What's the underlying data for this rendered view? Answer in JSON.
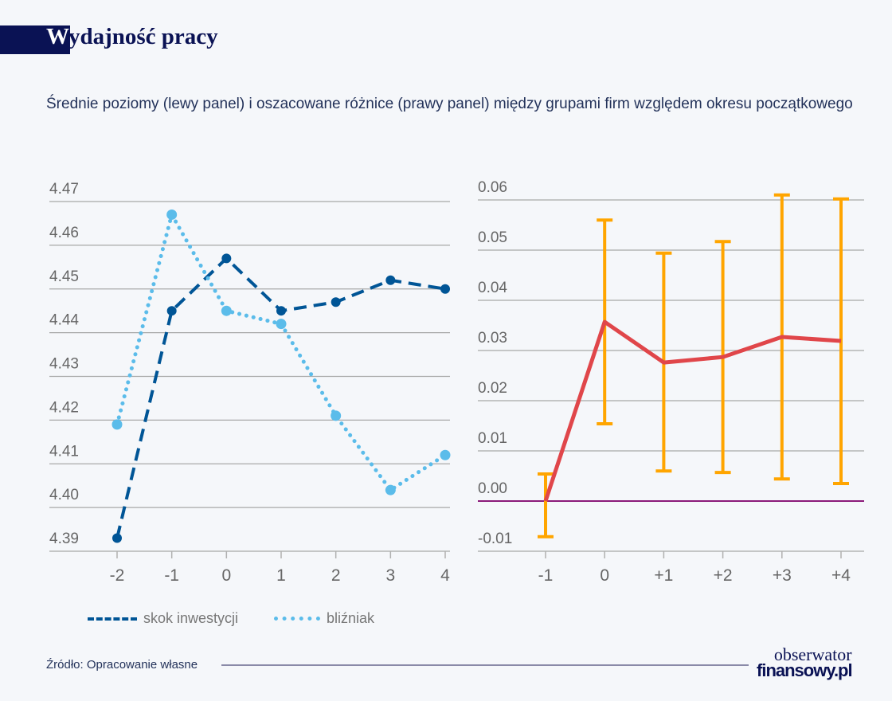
{
  "header": {
    "title_first_letter": "W",
    "title_rest": "ydajność pracy",
    "subtitle": "Średnie poziomy (lewy panel) i oszacowane różnice (prawy panel) między grupami firm względem okresu początkowego"
  },
  "chart_data": [
    {
      "type": "line",
      "categories": [
        "-2",
        "-1",
        "0",
        "1",
        "2",
        "3",
        "4"
      ],
      "ylim": [
        4.39,
        4.47
      ],
      "yticks": [
        "4.39",
        "4.40",
        "4.41",
        "4.42",
        "4.43",
        "4.44",
        "4.45",
        "4.46",
        "4.47"
      ],
      "grid": true,
      "legend_placement": "bottom",
      "series": [
        {
          "name": "skok inwestycji",
          "style": "dashed",
          "color": "#005596",
          "values": [
            4.393,
            4.445,
            4.457,
            4.445,
            4.447,
            4.452,
            4.45
          ]
        },
        {
          "name": "bliźniak",
          "style": "dotted",
          "color": "#5bbcea",
          "values": [
            4.419,
            4.467,
            4.445,
            4.442,
            4.421,
            4.404,
            4.412
          ]
        }
      ]
    },
    {
      "type": "line",
      "categories": [
        "-1",
        "0",
        "+1",
        "+2",
        "+3",
        "+4"
      ],
      "ylim": [
        -0.01,
        0.06
      ],
      "yticks": [
        "-0.01",
        "0.00",
        "0.01",
        "0.02",
        "0.03",
        "0.04",
        "0.05",
        "0.06"
      ],
      "grid": true,
      "series": [
        {
          "color": "#e0464a",
          "values": [
            0.0,
            0.0357,
            0.0276,
            0.0287,
            0.0327,
            0.0319
          ],
          "error_low": [
            -0.0071,
            0.0154,
            0.006,
            0.0057,
            0.0044,
            0.0035
          ],
          "error_high": [
            0.0054,
            0.056,
            0.0494,
            0.0517,
            0.061,
            0.0602
          ],
          "error_color": "#ffa500"
        }
      ],
      "zero_line_color": "#8b1a7a"
    }
  ],
  "footer": {
    "source": "Źródło: Opracowanie własne",
    "logo_line1": "obserwator",
    "logo_line2": "finansowy.pl"
  }
}
